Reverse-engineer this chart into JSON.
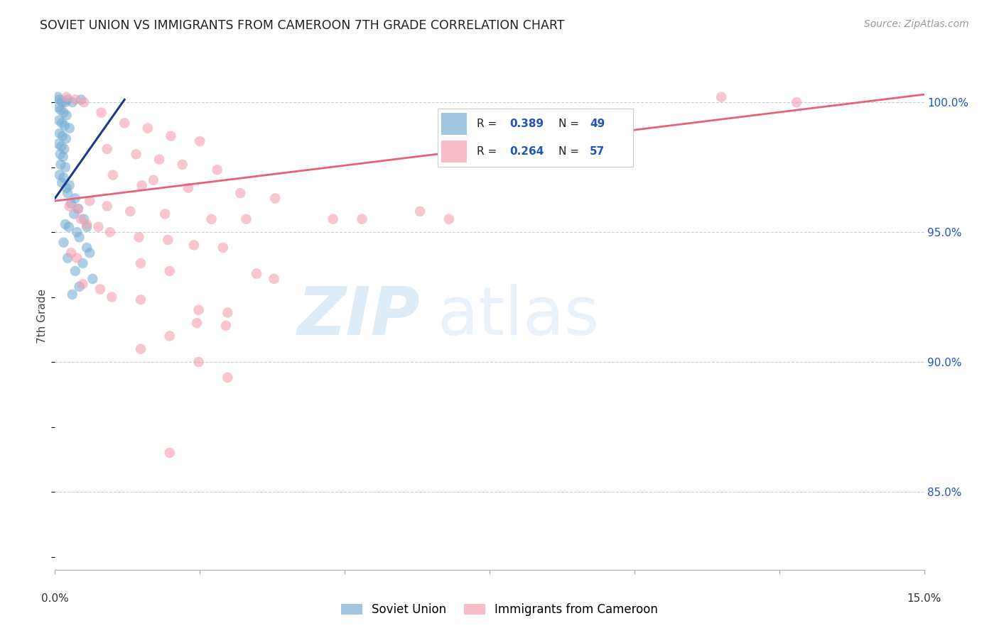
{
  "title": "SOVIET UNION VS IMMIGRANTS FROM CAMEROON 7TH GRADE CORRELATION CHART",
  "source": "Source: ZipAtlas.com",
  "ylabel": "7th Grade",
  "xlim": [
    0.0,
    15.0
  ],
  "ylim": [
    82.0,
    101.5
  ],
  "yticks": [
    85.0,
    90.0,
    95.0,
    100.0
  ],
  "ytick_labels": [
    "85.0%",
    "90.0%",
    "95.0%",
    "100.0%"
  ],
  "xticks": [
    0.0,
    2.5,
    5.0,
    7.5,
    10.0,
    12.5,
    15.0
  ],
  "color_soviet": "#7BAFD4",
  "color_cameroon": "#F4A0B0",
  "color_soviet_line": "#1A3A8C",
  "color_cameroon_line": "#E8607A",
  "soviet_scatter": [
    [
      0.05,
      100.2
    ],
    [
      0.08,
      100.1
    ],
    [
      0.12,
      100.0
    ],
    [
      0.18,
      100.0
    ],
    [
      0.22,
      100.1
    ],
    [
      0.06,
      99.8
    ],
    [
      0.1,
      99.7
    ],
    [
      0.15,
      99.6
    ],
    [
      0.2,
      99.5
    ],
    [
      0.07,
      99.3
    ],
    [
      0.12,
      99.2
    ],
    [
      0.17,
      99.1
    ],
    [
      0.25,
      99.0
    ],
    [
      0.08,
      98.8
    ],
    [
      0.13,
      98.7
    ],
    [
      0.19,
      98.6
    ],
    [
      0.06,
      98.4
    ],
    [
      0.11,
      98.3
    ],
    [
      0.16,
      98.2
    ],
    [
      0.09,
      98.0
    ],
    [
      0.14,
      97.9
    ],
    [
      0.1,
      97.6
    ],
    [
      0.18,
      97.5
    ],
    [
      0.08,
      97.2
    ],
    [
      0.15,
      97.1
    ],
    [
      0.12,
      96.9
    ],
    [
      0.2,
      96.7
    ],
    [
      0.3,
      100.0
    ],
    [
      0.45,
      100.1
    ],
    [
      0.25,
      96.8
    ],
    [
      0.22,
      96.5
    ],
    [
      0.35,
      96.3
    ],
    [
      0.28,
      96.1
    ],
    [
      0.4,
      95.9
    ],
    [
      0.33,
      95.7
    ],
    [
      0.5,
      95.5
    ],
    [
      0.18,
      95.3
    ],
    [
      0.24,
      95.2
    ],
    [
      0.38,
      95.0
    ],
    [
      0.42,
      94.8
    ],
    [
      0.15,
      94.6
    ],
    [
      0.55,
      94.4
    ],
    [
      0.6,
      94.2
    ],
    [
      0.22,
      94.0
    ],
    [
      0.48,
      93.8
    ],
    [
      0.35,
      93.5
    ],
    [
      0.65,
      93.2
    ],
    [
      0.42,
      92.9
    ],
    [
      0.3,
      92.6
    ],
    [
      0.55,
      95.2
    ]
  ],
  "cameroon_scatter": [
    [
      0.2,
      100.2
    ],
    [
      0.35,
      100.1
    ],
    [
      0.5,
      100.0
    ],
    [
      0.8,
      99.6
    ],
    [
      1.2,
      99.2
    ],
    [
      1.6,
      99.0
    ],
    [
      2.0,
      98.7
    ],
    [
      2.5,
      98.5
    ],
    [
      0.9,
      98.2
    ],
    [
      1.4,
      98.0
    ],
    [
      1.8,
      97.8
    ],
    [
      2.2,
      97.6
    ],
    [
      2.8,
      97.4
    ],
    [
      1.0,
      97.2
    ],
    [
      1.7,
      97.0
    ],
    [
      1.5,
      96.8
    ],
    [
      2.3,
      96.7
    ],
    [
      3.2,
      96.5
    ],
    [
      3.8,
      96.3
    ],
    [
      0.6,
      96.2
    ],
    [
      0.9,
      96.0
    ],
    [
      1.3,
      95.8
    ],
    [
      1.9,
      95.7
    ],
    [
      2.7,
      95.5
    ],
    [
      3.3,
      95.5
    ],
    [
      4.8,
      95.5
    ],
    [
      5.3,
      95.5
    ],
    [
      6.3,
      95.8
    ],
    [
      6.8,
      95.5
    ],
    [
      0.25,
      96.0
    ],
    [
      0.4,
      95.9
    ],
    [
      0.45,
      95.5
    ],
    [
      0.55,
      95.3
    ],
    [
      0.75,
      95.2
    ],
    [
      0.95,
      95.0
    ],
    [
      1.45,
      94.8
    ],
    [
      1.95,
      94.7
    ],
    [
      2.4,
      94.5
    ],
    [
      2.9,
      94.4
    ],
    [
      0.28,
      94.2
    ],
    [
      0.38,
      94.0
    ],
    [
      1.48,
      93.8
    ],
    [
      1.98,
      93.5
    ],
    [
      3.48,
      93.4
    ],
    [
      3.78,
      93.2
    ],
    [
      0.48,
      93.0
    ],
    [
      0.78,
      92.8
    ],
    [
      0.98,
      92.5
    ],
    [
      1.48,
      92.4
    ],
    [
      2.48,
      92.0
    ],
    [
      2.98,
      91.9
    ],
    [
      2.45,
      91.5
    ],
    [
      2.95,
      91.4
    ],
    [
      1.98,
      91.0
    ],
    [
      1.48,
      90.5
    ],
    [
      2.48,
      90.0
    ],
    [
      2.98,
      89.4
    ],
    [
      11.5,
      100.2
    ],
    [
      12.8,
      100.0
    ],
    [
      1.98,
      86.5
    ]
  ],
  "soviet_trend_x": [
    0.0,
    1.2
  ],
  "soviet_trend_y": [
    96.3,
    100.1
  ],
  "cameroon_trend_x": [
    0.0,
    15.0
  ],
  "cameroon_trend_y": [
    96.2,
    100.3
  ]
}
